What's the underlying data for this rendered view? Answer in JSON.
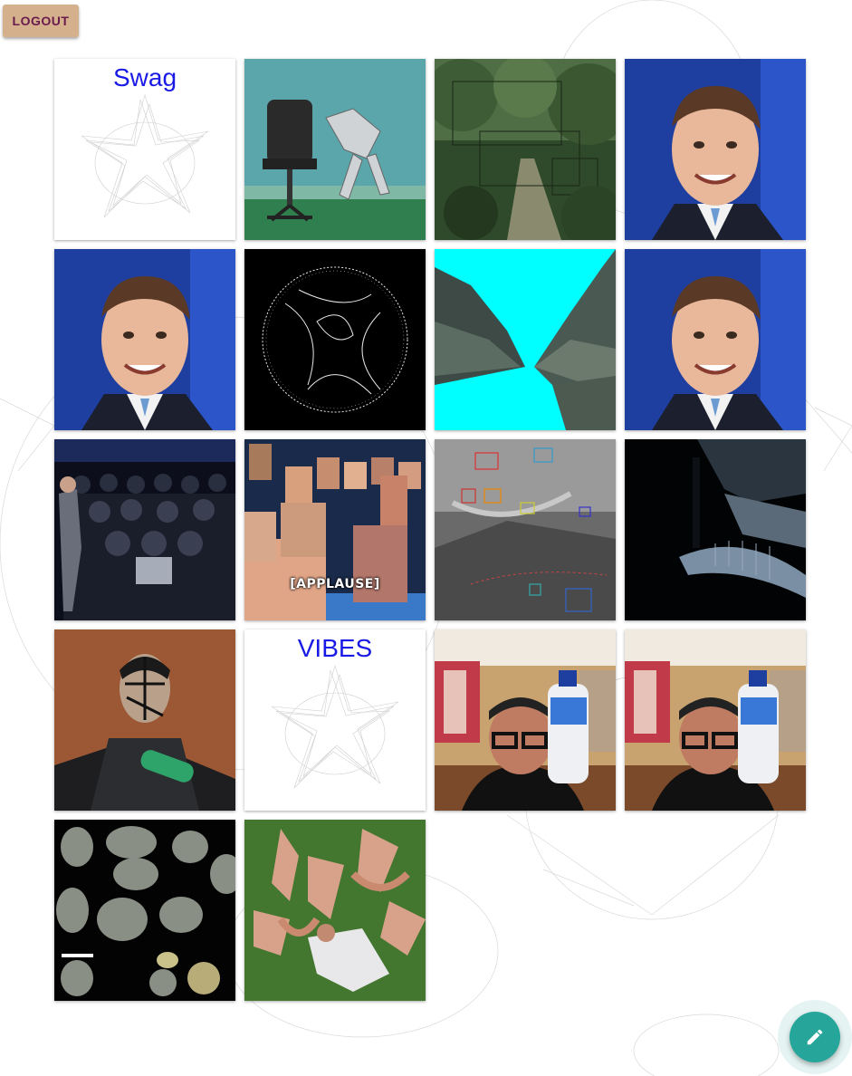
{
  "header": {
    "logout_label": "LOGOUT"
  },
  "tiles": [
    {
      "kind": "text-sketch",
      "caption": "Swag"
    },
    {
      "kind": "robot-office"
    },
    {
      "kind": "forest-path"
    },
    {
      "kind": "portrait"
    },
    {
      "kind": "portrait"
    },
    {
      "kind": "wire-sphere"
    },
    {
      "kind": "cyan-canyon"
    },
    {
      "kind": "portrait"
    },
    {
      "kind": "vr-crowd"
    },
    {
      "kind": "face-collage",
      "overlay": "[APPLAUSE]"
    },
    {
      "kind": "detection-boxes"
    },
    {
      "kind": "dark-interior"
    },
    {
      "kind": "mocap-figure"
    },
    {
      "kind": "text-sketch",
      "caption": "VIBES"
    },
    {
      "kind": "webcam-man"
    },
    {
      "kind": "webcam-man"
    },
    {
      "kind": "stone-tools"
    },
    {
      "kind": "dancers-field"
    }
  ],
  "fab": {
    "icon": "pencil-icon",
    "color": "#26a69a"
  }
}
